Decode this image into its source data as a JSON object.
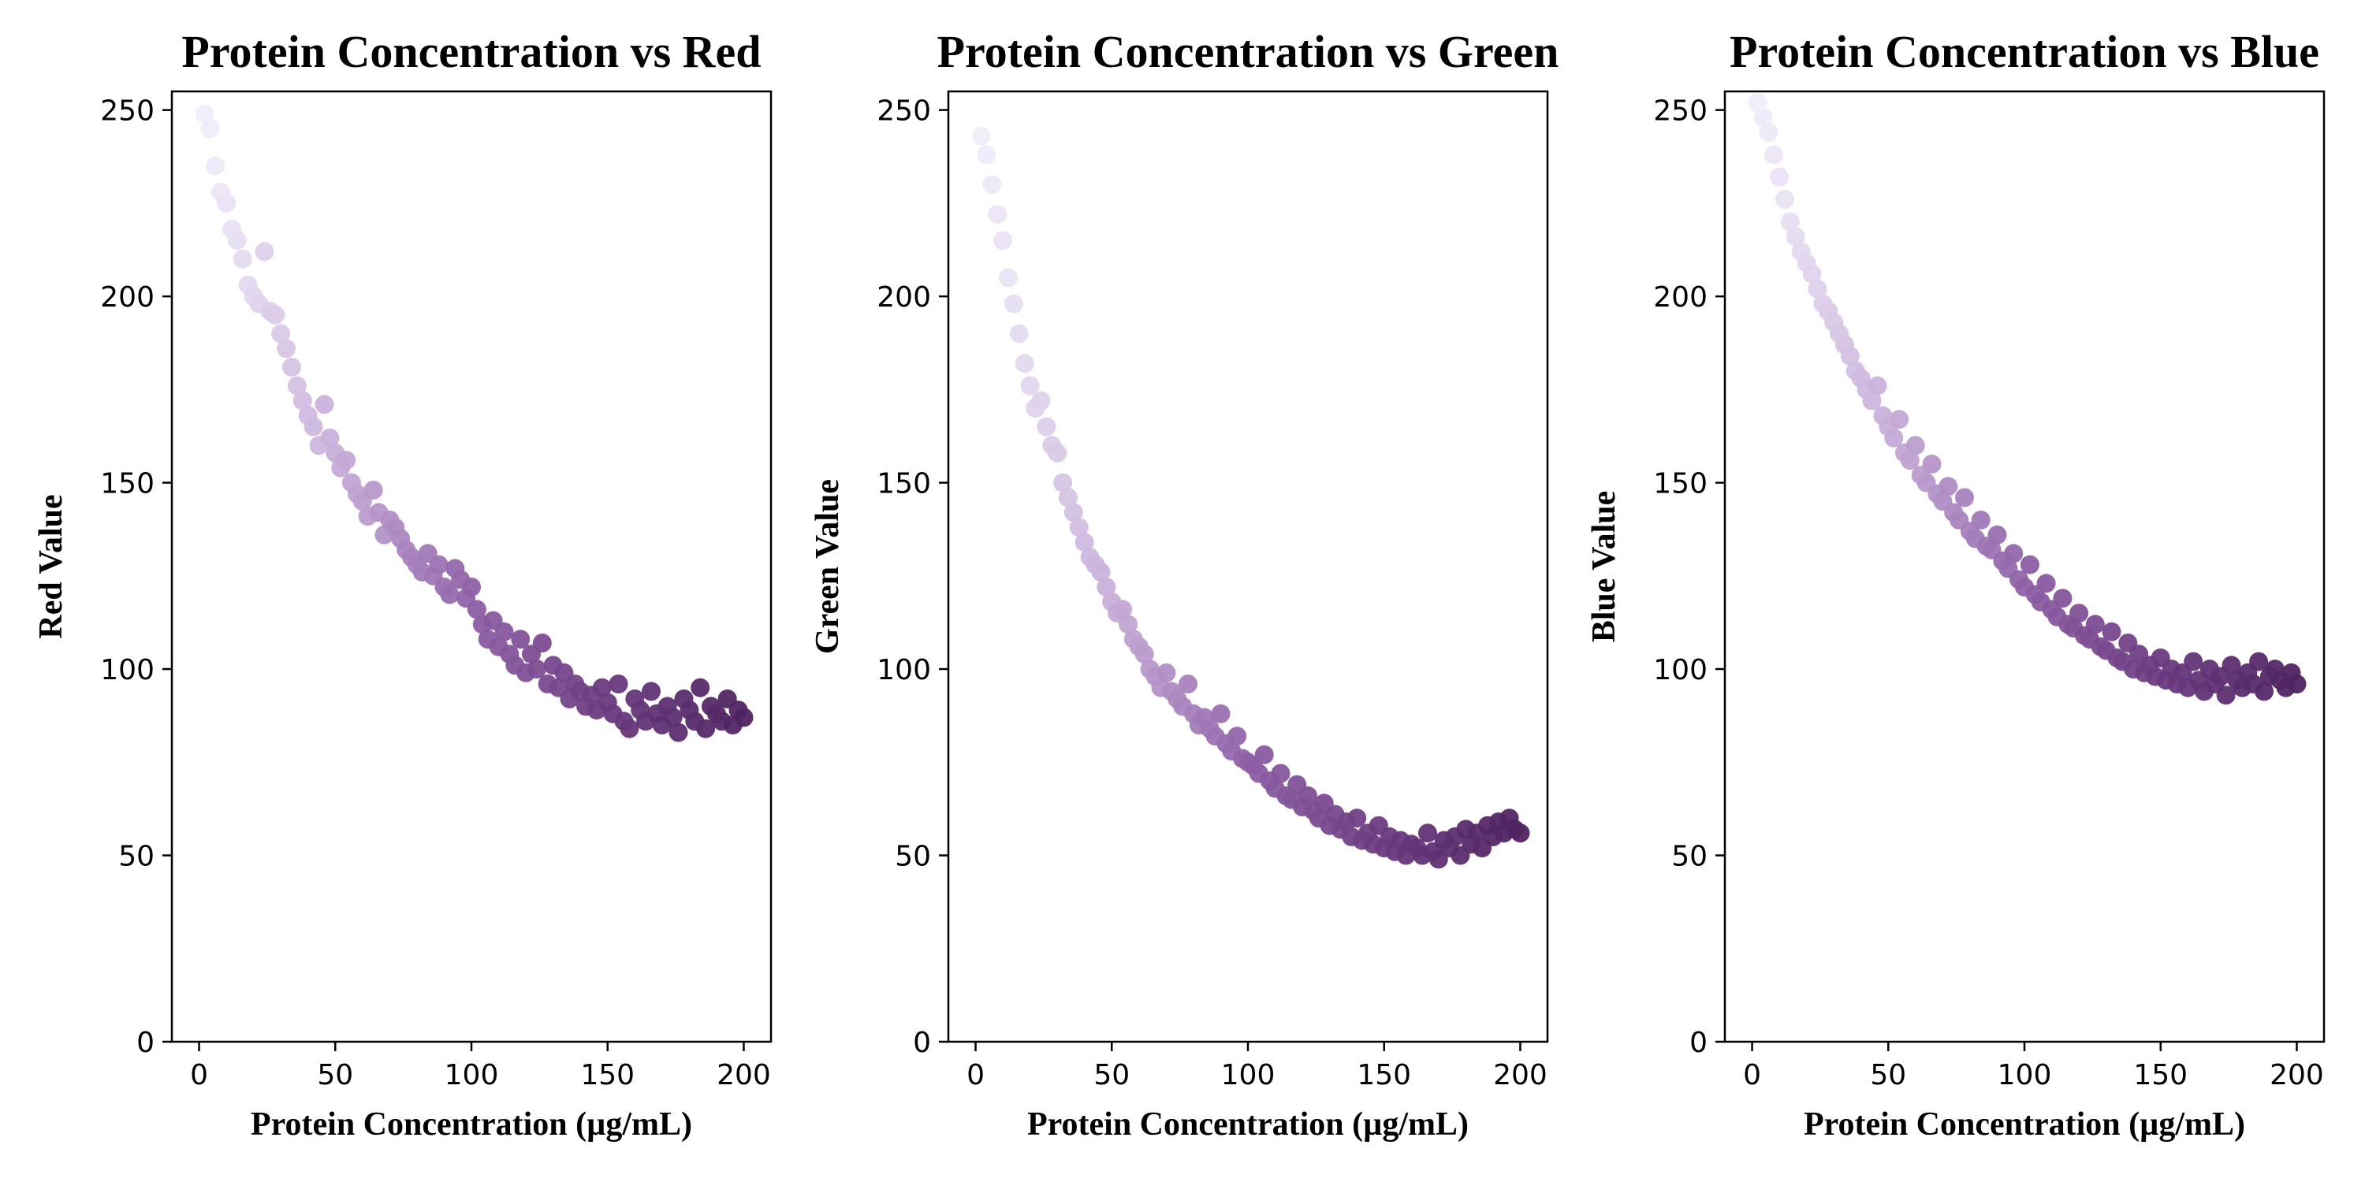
{
  "chart_data": [
    {
      "type": "scatter",
      "title": "Protein Concentration vs Red",
      "xlabel": "Protein Concentration (µg/mL)",
      "ylabel": "Red Value",
      "xlim": [
        -10,
        210
      ],
      "ylim": [
        0,
        255
      ],
      "xticks": [
        0,
        50,
        100,
        150,
        200
      ],
      "yticks": [
        0,
        50,
        100,
        150,
        200,
        250
      ],
      "grid": false,
      "colormap": [
        "#f2eefa",
        "#c6acd8",
        "#8e5fa6",
        "#6b3a7f",
        "#4f2460"
      ],
      "x": [
        2,
        4,
        6,
        8,
        10,
        12,
        14,
        16,
        18,
        20,
        22,
        24,
        26,
        28,
        30,
        32,
        34,
        36,
        38,
        40,
        42,
        44,
        46,
        48,
        50,
        52,
        54,
        56,
        58,
        60,
        62,
        64,
        66,
        68,
        70,
        72,
        74,
        76,
        78,
        80,
        82,
        84,
        86,
        88,
        90,
        92,
        94,
        96,
        98,
        100,
        102,
        104,
        106,
        108,
        110,
        112,
        114,
        116,
        118,
        120,
        122,
        124,
        126,
        128,
        130,
        132,
        134,
        136,
        138,
        140,
        142,
        144,
        146,
        148,
        150,
        152,
        154,
        156,
        158,
        160,
        162,
        164,
        166,
        168,
        170,
        172,
        174,
        176,
        178,
        180,
        182,
        184,
        186,
        188,
        190,
        192,
        194,
        196,
        198,
        200
      ],
      "y": [
        249,
        245,
        235,
        228,
        225,
        218,
        215,
        210,
        203,
        200,
        198,
        212,
        196,
        195,
        190,
        186,
        181,
        176,
        172,
        168,
        165,
        160,
        171,
        162,
        158,
        154,
        156,
        150,
        147,
        145,
        141,
        148,
        142,
        136,
        140,
        138,
        135,
        132,
        130,
        128,
        126,
        131,
        125,
        128,
        122,
        120,
        127,
        124,
        119,
        122,
        116,
        112,
        108,
        113,
        106,
        110,
        104,
        101,
        108,
        99,
        104,
        100,
        107,
        96,
        101,
        95,
        99,
        92,
        96,
        94,
        90,
        93,
        89,
        95,
        91,
        88,
        96,
        86,
        84,
        92,
        89,
        86,
        94,
        88,
        85,
        90,
        87,
        83,
        92,
        89,
        86,
        95,
        84,
        90,
        88,
        86,
        92,
        85,
        89,
        87
      ]
    },
    {
      "type": "scatter",
      "title": "Protein Concentration vs Green",
      "xlabel": "Protein Concentration (µg/mL)",
      "ylabel": "Green Value",
      "xlim": [
        -10,
        210
      ],
      "ylim": [
        0,
        255
      ],
      "xticks": [
        0,
        50,
        100,
        150,
        200
      ],
      "yticks": [
        0,
        50,
        100,
        150,
        200,
        250
      ],
      "grid": false,
      "colormap": [
        "#f2eefa",
        "#c6acd8",
        "#8e5fa6",
        "#6b3a7f",
        "#4f2460"
      ],
      "x": [
        2,
        4,
        6,
        8,
        10,
        12,
        14,
        16,
        18,
        20,
        22,
        24,
        26,
        28,
        30,
        32,
        34,
        36,
        38,
        40,
        42,
        44,
        46,
        48,
        50,
        52,
        54,
        56,
        58,
        60,
        62,
        64,
        66,
        68,
        70,
        72,
        74,
        76,
        78,
        80,
        82,
        84,
        86,
        88,
        90,
        92,
        94,
        96,
        98,
        100,
        102,
        104,
        106,
        108,
        110,
        112,
        114,
        116,
        118,
        120,
        122,
        124,
        126,
        128,
        130,
        132,
        134,
        136,
        138,
        140,
        142,
        144,
        146,
        148,
        150,
        152,
        154,
        156,
        158,
        160,
        162,
        164,
        166,
        168,
        170,
        172,
        174,
        176,
        178,
        180,
        182,
        184,
        186,
        188,
        190,
        192,
        194,
        196,
        198,
        200
      ],
      "y": [
        243,
        238,
        230,
        222,
        215,
        205,
        198,
        190,
        182,
        176,
        170,
        172,
        165,
        160,
        158,
        150,
        146,
        142,
        138,
        134,
        130,
        128,
        126,
        122,
        118,
        115,
        116,
        112,
        108,
        106,
        104,
        100,
        98,
        95,
        99,
        94,
        92,
        90,
        96,
        88,
        85,
        87,
        84,
        82,
        88,
        80,
        78,
        82,
        76,
        75,
        74,
        72,
        77,
        70,
        68,
        72,
        66,
        65,
        69,
        63,
        66,
        62,
        60,
        64,
        58,
        61,
        57,
        59,
        55,
        60,
        54,
        56,
        53,
        58,
        52,
        55,
        51,
        54,
        50,
        53,
        52,
        50,
        56,
        51,
        49,
        54,
        52,
        55,
        50,
        57,
        53,
        56,
        52,
        58,
        55,
        59,
        56,
        60,
        57,
        56
      ]
    },
    {
      "type": "scatter",
      "title": "Protein Concentration vs Blue",
      "xlabel": "Protein Concentration (µg/mL)",
      "ylabel": "Blue Value",
      "xlim": [
        -10,
        210
      ],
      "ylim": [
        0,
        255
      ],
      "xticks": [
        0,
        50,
        100,
        150,
        200
      ],
      "yticks": [
        0,
        50,
        100,
        150,
        200,
        250
      ],
      "grid": false,
      "colormap": [
        "#f2eefa",
        "#c6acd8",
        "#8e5fa6",
        "#6b3a7f",
        "#4f2460"
      ],
      "x": [
        2,
        4,
        6,
        8,
        10,
        12,
        14,
        16,
        18,
        20,
        22,
        24,
        26,
        28,
        30,
        32,
        34,
        36,
        38,
        40,
        42,
        44,
        46,
        48,
        50,
        52,
        54,
        56,
        58,
        60,
        62,
        64,
        66,
        68,
        70,
        72,
        74,
        76,
        78,
        80,
        82,
        84,
        86,
        88,
        90,
        92,
        94,
        96,
        98,
        100,
        102,
        104,
        106,
        108,
        110,
        112,
        114,
        116,
        118,
        120,
        122,
        124,
        126,
        128,
        130,
        132,
        134,
        136,
        138,
        140,
        142,
        144,
        146,
        148,
        150,
        152,
        154,
        156,
        158,
        160,
        162,
        164,
        166,
        168,
        170,
        172,
        174,
        176,
        178,
        180,
        182,
        184,
        186,
        188,
        190,
        192,
        194,
        196,
        198,
        200
      ],
      "y": [
        252,
        248,
        244,
        238,
        232,
        226,
        220,
        216,
        212,
        209,
        206,
        202,
        198,
        196,
        193,
        190,
        187,
        184,
        180,
        178,
        175,
        172,
        176,
        168,
        165,
        162,
        167,
        158,
        156,
        160,
        152,
        150,
        155,
        147,
        145,
        149,
        142,
        140,
        146,
        137,
        135,
        140,
        133,
        132,
        136,
        129,
        127,
        131,
        124,
        122,
        128,
        120,
        118,
        123,
        116,
        114,
        119,
        112,
        111,
        115,
        109,
        108,
        112,
        106,
        105,
        110,
        103,
        102,
        107,
        100,
        104,
        99,
        101,
        98,
        103,
        97,
        100,
        96,
        99,
        95,
        102,
        97,
        94,
        100,
        96,
        98,
        93,
        101,
        97,
        95,
        99,
        96,
        102,
        94,
        98,
        100,
        97,
        95,
        99,
        96
      ]
    }
  ]
}
